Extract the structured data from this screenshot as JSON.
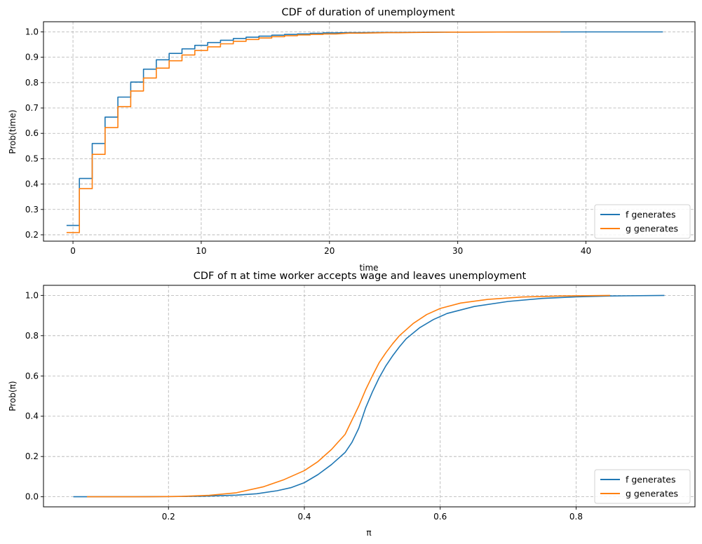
{
  "chart_data": [
    {
      "type": "line",
      "title": "CDF of duration of unemployment",
      "xlabel": "time",
      "ylabel": "Prob(time)",
      "xlim": [
        -2.3,
        48.5
      ],
      "ylim": [
        0.175,
        1.04
      ],
      "xticks": [
        0,
        10,
        20,
        30,
        40
      ],
      "yticks": [
        0.2,
        0.3,
        0.4,
        0.5,
        0.6,
        0.7,
        0.8,
        0.9,
        1.0
      ],
      "xtick_labels": [
        "0",
        "10",
        "20",
        "30",
        "40"
      ],
      "ytick_labels": [
        "0.2",
        "0.3",
        "0.4",
        "0.5",
        "0.6",
        "0.7",
        "0.8",
        "0.9",
        "1.0"
      ],
      "grid": true,
      "legend_position": "lower-right",
      "step": true,
      "series": [
        {
          "name": "f generates",
          "color": "#1f77b4",
          "x": [
            0,
            1,
            2,
            3,
            4,
            5,
            6,
            7,
            8,
            9,
            10,
            11,
            12,
            13,
            14,
            15,
            16,
            17,
            18,
            19,
            20,
            22,
            25,
            30,
            40,
            46
          ],
          "y": [
            0.237,
            0.422,
            0.56,
            0.664,
            0.743,
            0.802,
            0.853,
            0.89,
            0.915,
            0.933,
            0.947,
            0.958,
            0.967,
            0.974,
            0.979,
            0.983,
            0.987,
            0.99,
            0.992,
            0.994,
            0.996,
            0.997,
            0.998,
            0.999,
            1.0,
            1.0
          ]
        },
        {
          "name": "g generates",
          "color": "#ff7f0e",
          "x": [
            0,
            1,
            2,
            3,
            4,
            5,
            6,
            7,
            8,
            9,
            10,
            11,
            12,
            13,
            14,
            15,
            16,
            17,
            18,
            19,
            20,
            22,
            25,
            30,
            38
          ],
          "y": [
            0.209,
            0.382,
            0.517,
            0.623,
            0.705,
            0.767,
            0.818,
            0.857,
            0.886,
            0.909,
            0.927,
            0.941,
            0.953,
            0.963,
            0.97,
            0.976,
            0.981,
            0.985,
            0.988,
            0.99,
            0.992,
            0.995,
            0.997,
            0.999,
            1.0
          ]
        }
      ]
    },
    {
      "type": "line",
      "title": "CDF of π at time worker accepts wage and leaves unemployment",
      "xlabel": "π",
      "ylabel": "Prob(π)",
      "xlim": [
        0.016,
        0.975
      ],
      "ylim": [
        -0.05,
        1.05
      ],
      "xticks": [
        0.2,
        0.4,
        0.6,
        0.8
      ],
      "yticks": [
        0.0,
        0.2,
        0.4,
        0.6,
        0.8,
        1.0
      ],
      "xtick_labels": [
        "0.2",
        "0.4",
        "0.6",
        "0.8"
      ],
      "ytick_labels": [
        "0.0",
        "0.2",
        "0.4",
        "0.6",
        "0.8",
        "1.0"
      ],
      "grid": true,
      "legend_position": "lower-right",
      "step": false,
      "series": [
        {
          "name": "f generates",
          "color": "#1f77b4",
          "x": [
            0.06,
            0.1,
            0.15,
            0.2,
            0.25,
            0.3,
            0.33,
            0.36,
            0.38,
            0.4,
            0.42,
            0.44,
            0.46,
            0.47,
            0.48,
            0.49,
            0.5,
            0.51,
            0.52,
            0.53,
            0.54,
            0.55,
            0.57,
            0.59,
            0.61,
            0.65,
            0.7,
            0.75,
            0.8,
            0.85,
            0.93
          ],
          "y": [
            0.0,
            0.0,
            0.0,
            0.001,
            0.003,
            0.008,
            0.015,
            0.03,
            0.045,
            0.07,
            0.11,
            0.16,
            0.22,
            0.27,
            0.34,
            0.44,
            0.52,
            0.59,
            0.65,
            0.7,
            0.745,
            0.785,
            0.84,
            0.88,
            0.91,
            0.945,
            0.97,
            0.985,
            0.993,
            0.997,
            1.0
          ]
        },
        {
          "name": "g generates",
          "color": "#ff7f0e",
          "x": [
            0.08,
            0.12,
            0.17,
            0.22,
            0.26,
            0.3,
            0.34,
            0.37,
            0.4,
            0.42,
            0.44,
            0.46,
            0.47,
            0.48,
            0.49,
            0.5,
            0.51,
            0.52,
            0.53,
            0.54,
            0.56,
            0.58,
            0.6,
            0.63,
            0.67,
            0.72,
            0.78,
            0.85
          ],
          "y": [
            0.0,
            0.0,
            0.0,
            0.002,
            0.007,
            0.02,
            0.05,
            0.085,
            0.13,
            0.175,
            0.235,
            0.31,
            0.38,
            0.45,
            0.53,
            0.6,
            0.665,
            0.715,
            0.76,
            0.8,
            0.86,
            0.905,
            0.935,
            0.962,
            0.98,
            0.992,
            0.997,
            1.0
          ]
        }
      ]
    }
  ]
}
